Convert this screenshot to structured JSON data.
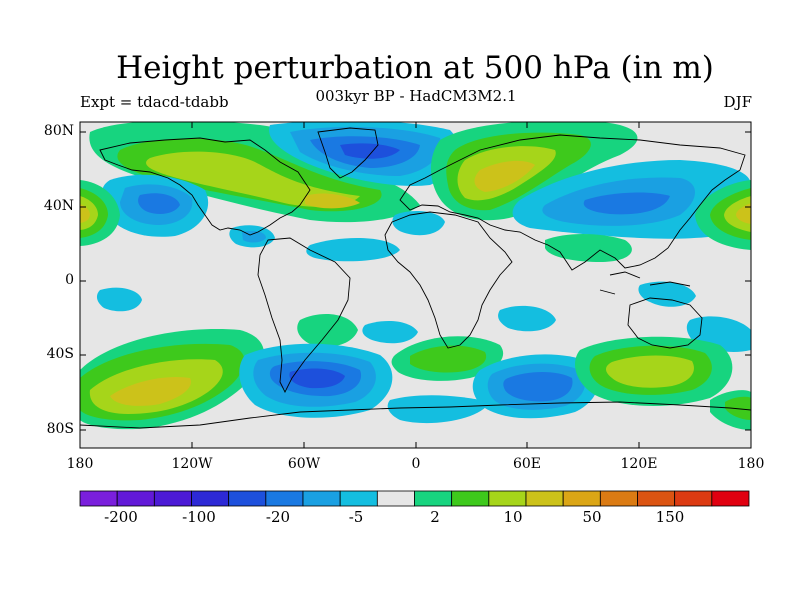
{
  "title": "Height perturbation at 500 hPa (in m)",
  "subtitle": "003kyr BP - HadCM3M2.1",
  "left_label": "Expt = tdacd-tdabb",
  "right_label": "DJF",
  "lat_labels": [
    "80N",
    "40N",
    "0",
    "40S",
    "80S"
  ],
  "lon_labels": [
    "180",
    "120W",
    "60W",
    "0",
    "60E",
    "120E",
    "180"
  ],
  "colorbar": {
    "colors": [
      "#7a1fdc",
      "#6219d8",
      "#4c1ad6",
      "#2d29d6",
      "#1d50dc",
      "#1a79e2",
      "#1aa0e2",
      "#14bee0",
      "#e6e6e6",
      "#17d47f",
      "#3ec91c",
      "#a6d51a",
      "#ccc21a",
      "#dba616",
      "#db7b13",
      "#db5412",
      "#dc3b12",
      "#e00010"
    ],
    "tick_labels": [
      "-200",
      "-100",
      "-20",
      "-5",
      "2",
      "10",
      "50",
      "150"
    ]
  },
  "colors": {
    "neutral": "#e6e6e6",
    "light_blue": "#14bee0",
    "blue": "#1aa0e2",
    "mid_blue": "#1a79e2",
    "deep_blue": "#1d50dc",
    "teal": "#17d47f",
    "green": "#3ec91c",
    "yellow_green": "#a6d51a",
    "olive": "#ccc21a",
    "orange": "#dba616"
  }
}
